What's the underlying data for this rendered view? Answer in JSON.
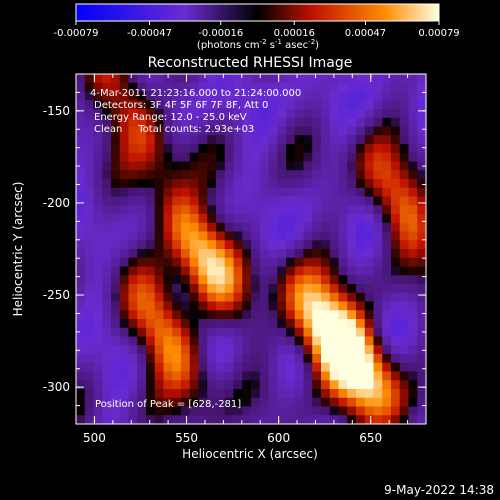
{
  "chart_data": {
    "type": "heatmap",
    "title": "Reconstructed RHESSI Image",
    "xlabel": "Heliocentric X (arcsec)",
    "ylabel": "Heliocentric Y (arcsec)",
    "xlim": [
      490,
      680
    ],
    "ylim": [
      -320,
      -130
    ],
    "x_ticks": [
      500,
      550,
      600,
      650
    ],
    "y_ticks": [
      -150,
      -200,
      -250,
      -300
    ],
    "colorbar": {
      "range": [
        -0.00079,
        0.00079
      ],
      "ticks": [
        -0.00079,
        -0.00047,
        -0.00016,
        0.00016,
        0.00047,
        0.00079
      ],
      "tick_labels": [
        "-0.00079",
        "-0.00047",
        "-0.00016",
        "0.00016",
        "0.00047",
        "0.00079"
      ],
      "unit_text": "(photons cm",
      "unit_sup1": "-2",
      "unit_mid": " s",
      "unit_sup2": "-1",
      "unit_end": " asec",
      "unit_sup3": "-2",
      "unit_close": ")"
    },
    "annotations": [
      "4-Mar-2011 21:23:16.000 to 21:24:00.000",
      "Detectors: 3F 4F 5F 6F 7F 8F, Att 0",
      "Energy Range: 12.0 - 25.0 keV",
      "Clean     Total counts: 2.93e+03"
    ],
    "peak_label": "Position of Peak = [628,-281]",
    "peak": [
      628,
      -281
    ],
    "bright_ridges": [
      {
        "x": 557,
        "y": -225,
        "peak": 0.00079
      },
      {
        "x": 540,
        "y": -275,
        "peak": 0.0006
      },
      {
        "x": 625,
        "y": -272,
        "peak": 0.00079
      },
      {
        "x": 645,
        "y": -285,
        "peak": 0.0007
      },
      {
        "x": 665,
        "y": -200,
        "peak": 0.0005
      },
      {
        "x": 520,
        "y": -150,
        "peak": 0.00045
      }
    ]
  },
  "footer": {
    "timestamp": "9-May-2022 14:38"
  }
}
